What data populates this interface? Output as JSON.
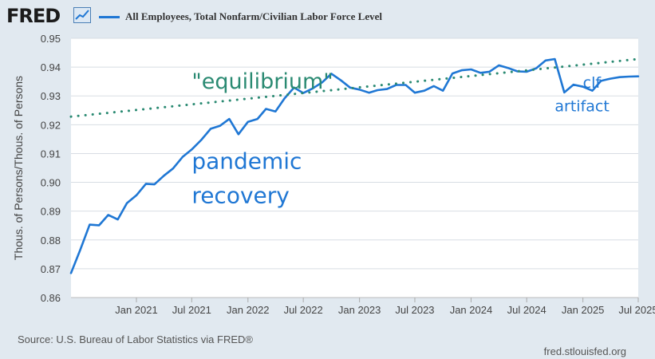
{
  "header": {
    "logo_text": "FRED",
    "logo_icon": "line-chart-icon",
    "legend_label": "All Employees, Total Nonfarm/Civilian Labor Force Level"
  },
  "colors": {
    "series": "#1f77d4",
    "trend": "#2a8a72",
    "plot_bg": "#ffffff",
    "page_bg": "#e1e9f0",
    "grid": "#d8dde3"
  },
  "footer": {
    "source": "Source: U.S. Bureau of Labor Statistics via FRED®",
    "site": "fred.stlouisfed.org"
  },
  "chart_data": {
    "type": "line",
    "title": "",
    "xlabel": "",
    "ylabel": "Thous. of Persons/Thous. of Persons",
    "xlim": [
      "2020-06-01",
      "2025-07-01"
    ],
    "ylim": [
      0.86,
      0.95
    ],
    "y_ticks": [
      "0.86",
      "0.87",
      "0.88",
      "0.89",
      "0.90",
      "0.91",
      "0.92",
      "0.93",
      "0.94",
      "0.95"
    ],
    "x_ticks": [
      {
        "date": "2021-01-01",
        "label": "Jan 2021"
      },
      {
        "date": "2021-07-01",
        "label": "Jul 2021"
      },
      {
        "date": "2022-01-01",
        "label": "Jan 2022"
      },
      {
        "date": "2022-07-01",
        "label": "Jul 2022"
      },
      {
        "date": "2023-01-01",
        "label": "Jan 2023"
      },
      {
        "date": "2023-07-01",
        "label": "Jul 2023"
      },
      {
        "date": "2024-01-01",
        "label": "Jan 2024"
      },
      {
        "date": "2024-07-01",
        "label": "Jul 2024"
      },
      {
        "date": "2025-01-01",
        "label": "Jan 2025"
      },
      {
        "date": "2025-07-01",
        "label": "Jul 2025"
      }
    ],
    "grid": "horizontal",
    "legend": "top",
    "series": [
      {
        "name": "All Employees, Total Nonfarm/Civilian Labor Force Level",
        "style": "solid",
        "x": [
          "2020-06-01",
          "2020-07-01",
          "2020-08-01",
          "2020-09-01",
          "2020-10-01",
          "2020-11-01",
          "2020-12-01",
          "2021-01-01",
          "2021-02-01",
          "2021-03-01",
          "2021-04-01",
          "2021-05-01",
          "2021-06-01",
          "2021-07-01",
          "2021-08-01",
          "2021-09-01",
          "2021-10-01",
          "2021-11-01",
          "2021-12-01",
          "2022-01-01",
          "2022-02-01",
          "2022-03-01",
          "2022-04-01",
          "2022-05-01",
          "2022-06-01",
          "2022-07-01",
          "2022-08-01",
          "2022-09-01",
          "2022-10-01",
          "2022-11-01",
          "2022-12-01",
          "2023-01-01",
          "2023-02-01",
          "2023-03-01",
          "2023-04-01",
          "2023-05-01",
          "2023-06-01",
          "2023-07-01",
          "2023-08-01",
          "2023-09-01",
          "2023-10-01",
          "2023-11-01",
          "2023-12-01",
          "2024-01-01",
          "2024-02-01",
          "2024-03-01",
          "2024-04-01",
          "2024-05-01",
          "2024-06-01",
          "2024-07-01",
          "2024-08-01",
          "2024-09-01",
          "2024-10-01",
          "2024-11-01",
          "2024-12-01",
          "2025-01-01",
          "2025-02-01",
          "2025-03-01",
          "2025-04-01",
          "2025-05-01",
          "2025-06-01",
          "2025-07-01"
        ],
        "values": [
          0.8685,
          0.8765,
          0.8853,
          0.8851,
          0.8887,
          0.8871,
          0.8928,
          0.8955,
          0.8995,
          0.8993,
          0.9023,
          0.9048,
          0.9088,
          0.9114,
          0.9147,
          0.9186,
          0.9196,
          0.922,
          0.9167,
          0.921,
          0.922,
          0.9255,
          0.9246,
          0.9292,
          0.9329,
          0.931,
          0.9326,
          0.9347,
          0.9377,
          0.9354,
          0.9329,
          0.9322,
          0.9311,
          0.932,
          0.9324,
          0.9338,
          0.9338,
          0.9311,
          0.9318,
          0.9334,
          0.9318,
          0.9378,
          0.9389,
          0.9392,
          0.938,
          0.9384,
          0.9406,
          0.9397,
          0.9385,
          0.9384,
          0.9396,
          0.9423,
          0.9428,
          0.9312,
          0.9339,
          0.9332,
          0.9318,
          0.9352,
          0.936,
          0.9365,
          0.9367,
          0.9368
        ]
      },
      {
        "name": "trend",
        "style": "dotted",
        "x": [
          "2020-06-01",
          "2025-07-01"
        ],
        "values": [
          0.9228,
          0.9428
        ]
      }
    ],
    "annotations": [
      {
        "text": "\"equilibrium\"",
        "x": "2021-07-01",
        "y": 0.9325,
        "color": "#2a8a72",
        "size": 27
      },
      {
        "text": "pandemic",
        "x": "2021-07-01",
        "y": 0.9047,
        "color": "#1f77d4",
        "size": 28
      },
      {
        "text": "recovery",
        "x": "2021-07-01",
        "y": 0.8928,
        "color": "#1f77d4",
        "size": 28
      },
      {
        "text": "clf",
        "x": "2025-01-01",
        "y": 0.9328,
        "color": "#1f77d4",
        "size": 19
      },
      {
        "text": "artifact",
        "x": "2024-10-01",
        "y": 0.9246,
        "color": "#1f77d4",
        "size": 19
      }
    ]
  }
}
